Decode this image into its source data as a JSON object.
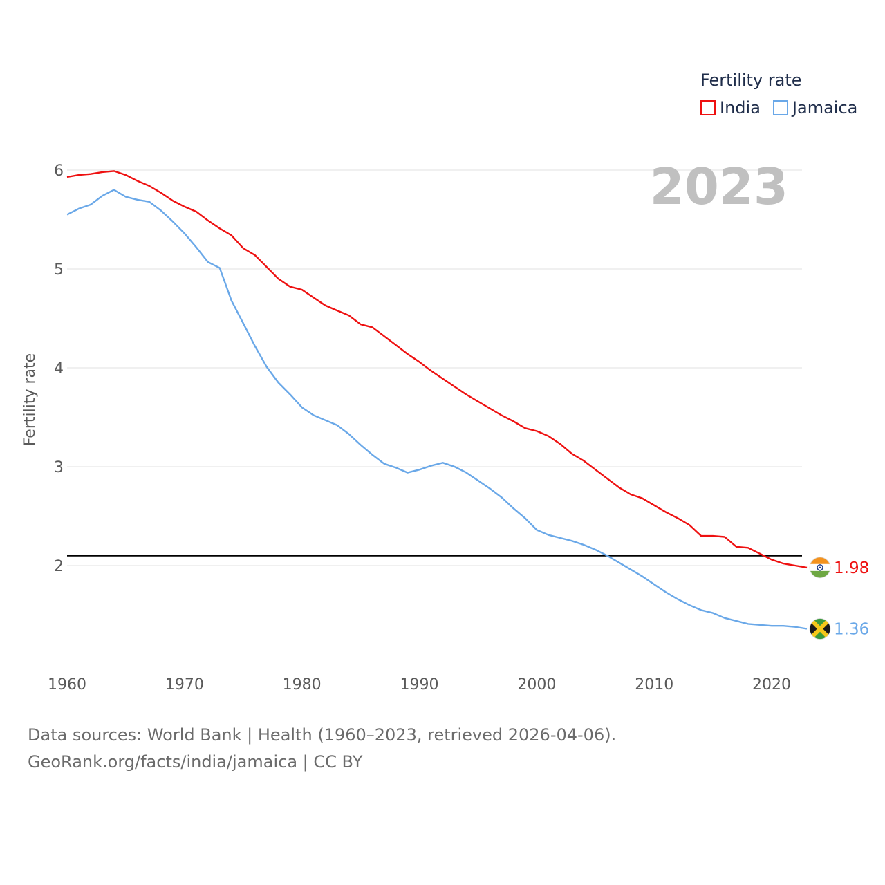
{
  "legend": {
    "title": "Fertility rate",
    "items": [
      {
        "label": "India",
        "color": "#ee1111"
      },
      {
        "label": "Jamaica",
        "color": "#6aa8e8"
      }
    ]
  },
  "year_label": "2023",
  "footer": {
    "line1": "Data sources: World Bank | Health (1960–2023, retrieved 2026-04-06).",
    "line2": "GeoRank.org/facts/india/jamaica | CC BY"
  },
  "chart_data": {
    "type": "line",
    "title": "Fertility rate",
    "xlabel": "",
    "ylabel": "Fertility rate",
    "xlim": [
      1960,
      2023
    ],
    "ylim": [
      1.2,
      6.2
    ],
    "x_ticks": [
      "1960",
      "1970",
      "1980",
      "1990",
      "2000",
      "2010",
      "2020"
    ],
    "y_ticks": [
      "2",
      "3",
      "4",
      "5",
      "6"
    ],
    "grid": true,
    "reference_line": {
      "value": 2.1,
      "color": "#000000"
    },
    "x": [
      1960,
      1961,
      1962,
      1963,
      1964,
      1965,
      1966,
      1967,
      1968,
      1969,
      1970,
      1971,
      1972,
      1973,
      1974,
      1975,
      1976,
      1977,
      1978,
      1979,
      1980,
      1981,
      1982,
      1983,
      1984,
      1985,
      1986,
      1987,
      1988,
      1989,
      1990,
      1991,
      1992,
      1993,
      1994,
      1995,
      1996,
      1997,
      1998,
      1999,
      2000,
      2001,
      2002,
      2003,
      2004,
      2005,
      2006,
      2007,
      2008,
      2009,
      2010,
      2011,
      2012,
      2013,
      2014,
      2015,
      2016,
      2017,
      2018,
      2019,
      2020,
      2021,
      2022,
      2023
    ],
    "series": [
      {
        "name": "India",
        "color": "#ee1111",
        "end_label": "1.98",
        "values": [
          5.93,
          5.95,
          5.96,
          5.98,
          5.99,
          5.95,
          5.89,
          5.84,
          5.77,
          5.69,
          5.63,
          5.58,
          5.49,
          5.41,
          5.34,
          5.21,
          5.14,
          5.02,
          4.9,
          4.82,
          4.79,
          4.71,
          4.63,
          4.58,
          4.53,
          4.44,
          4.41,
          4.32,
          4.23,
          4.14,
          4.06,
          3.97,
          3.89,
          3.81,
          3.73,
          3.66,
          3.59,
          3.52,
          3.46,
          3.39,
          3.36,
          3.31,
          3.23,
          3.13,
          3.06,
          2.97,
          2.88,
          2.79,
          2.72,
          2.68,
          2.61,
          2.54,
          2.48,
          2.41,
          2.3,
          2.3,
          2.29,
          2.19,
          2.18,
          2.12,
          2.06,
          2.02,
          2.0,
          1.98
        ]
      },
      {
        "name": "Jamaica",
        "color": "#6aa8e8",
        "end_label": "1.36",
        "values": [
          5.55,
          5.61,
          5.65,
          5.74,
          5.8,
          5.73,
          5.7,
          5.68,
          5.59,
          5.48,
          5.36,
          5.22,
          5.07,
          5.01,
          4.68,
          4.45,
          4.22,
          4.01,
          3.85,
          3.73,
          3.6,
          3.52,
          3.47,
          3.42,
          3.33,
          3.22,
          3.12,
          3.03,
          2.99,
          2.94,
          2.97,
          3.01,
          3.04,
          3.0,
          2.94,
          2.86,
          2.78,
          2.69,
          2.58,
          2.48,
          2.36,
          2.31,
          2.28,
          2.25,
          2.21,
          2.16,
          2.1,
          2.03,
          1.96,
          1.89,
          1.81,
          1.73,
          1.66,
          1.6,
          1.55,
          1.52,
          1.47,
          1.44,
          1.41,
          1.4,
          1.39,
          1.39,
          1.38,
          1.36
        ]
      }
    ]
  }
}
